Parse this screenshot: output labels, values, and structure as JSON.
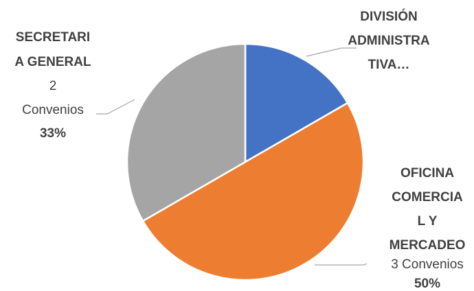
{
  "chart_data": {
    "type": "pie",
    "title": "",
    "start_angle_deg": 0,
    "slices": [
      {
        "name_lines": [
          "DIVISIÓN",
          "ADMINISTRA",
          "TIVA…"
        ],
        "value": 1,
        "count_label": "",
        "percent_label": "",
        "color": "#4472C4"
      },
      {
        "name_lines": [
          "OFICINA",
          "COMERCIA",
          "L Y",
          "MERCADEO"
        ],
        "value": 3,
        "count_label": "3 Convenios",
        "percent_label": "50%",
        "color": "#ED7D31"
      },
      {
        "name_lines": [
          "SECRETARI",
          "A GENERAL"
        ],
        "value": 2,
        "count_label": "2|Convenios",
        "percent_label": "33%",
        "color": "#A5A5A5"
      }
    ]
  }
}
